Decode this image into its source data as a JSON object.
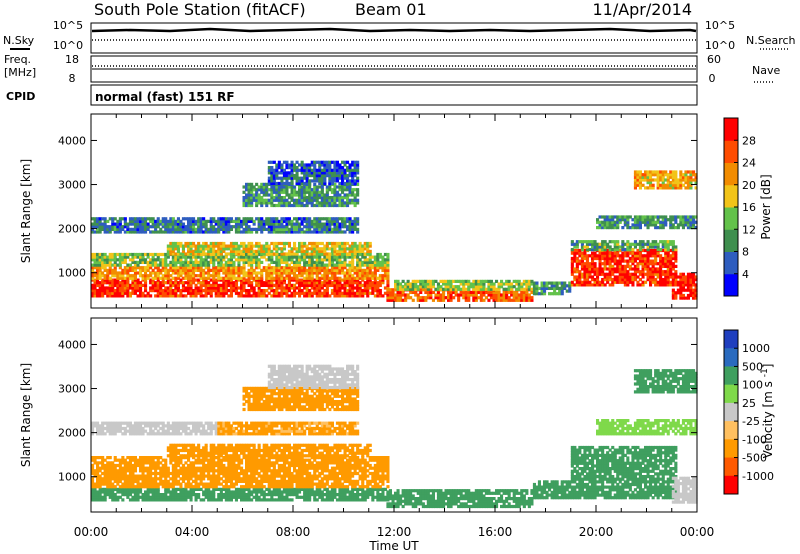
{
  "header": {
    "station_title": "South Pole Station (fitACF)",
    "beam_label": "Beam 01",
    "date_label": "11/Apr/2014"
  },
  "top_panels": {
    "nsky_label": "N.Sky",
    "nsearch_label": "N.Search",
    "freq_label_line1": "Freq.",
    "freq_label_line2": "[MHz]",
    "nave_label": "Nave",
    "cpid_label": "CPID",
    "cpid_value": "normal (fast) 151 RF",
    "noise_ticks": [
      "10^5",
      "10^0"
    ],
    "freq_ticks": [
      "18",
      "8"
    ],
    "nave_ticks": [
      "60",
      "0"
    ]
  },
  "colors": {
    "power_scale": [
      "#0000ff",
      "#2e5dbf",
      "#3f8f4f",
      "#63c24a",
      "#f2c419",
      "#f28c00",
      "#ff4c00",
      "#ff0000"
    ],
    "velocity_scale": [
      "#ff0000",
      "#ff5a00",
      "#ff9a00",
      "#ffc060",
      "#c8c8c8",
      "#7fd94a",
      "#3f9f5f",
      "#2a6bbf",
      "#1f3fbf"
    ],
    "velocity_ground_scatter": "#c8c8c8"
  },
  "chart_data": [
    {
      "type": "heatmap",
      "name": "Power",
      "ylabel": "Slant Range [km]",
      "xlabel": "Time UT",
      "x_ticks": [
        "00:00",
        "04:00",
        "08:00",
        "12:00",
        "16:00",
        "20:00",
        "00:00"
      ],
      "y_ticks": [
        1000,
        2000,
        3000,
        4000
      ],
      "ylim": [
        200,
        4600
      ],
      "colorbar_label": "Power [dB]",
      "colorbar_ticks": [
        4,
        8,
        12,
        16,
        20,
        24,
        28
      ],
      "colorbar_range": [
        0,
        32
      ],
      "bands": [
        {
          "t0": 0.0,
          "t1": 11.7,
          "r0": 450,
          "r1": 850,
          "value": 28
        },
        {
          "t0": 0.0,
          "t1": 11.7,
          "r0": 850,
          "r1": 1150,
          "value": 22
        },
        {
          "t0": 0.0,
          "t1": 11.7,
          "r0": 1150,
          "r1": 1400,
          "value": 14
        },
        {
          "t0": 3.0,
          "t1": 11.0,
          "r0": 1400,
          "r1": 1650,
          "value": 18
        },
        {
          "t0": 0.0,
          "t1": 10.5,
          "r0": 1900,
          "r1": 2250,
          "value": 8
        },
        {
          "t0": 6.0,
          "t1": 10.5,
          "r0": 2500,
          "r1": 3000,
          "value": 10
        },
        {
          "t0": 7.0,
          "t1": 10.5,
          "r0": 3000,
          "r1": 3500,
          "value": 6
        },
        {
          "t0": 11.7,
          "t1": 17.5,
          "r0": 350,
          "r1": 600,
          "value": 25
        },
        {
          "t0": 12.0,
          "t1": 17.5,
          "r0": 600,
          "r1": 800,
          "value": 15
        },
        {
          "t0": 17.5,
          "t1": 19.0,
          "r0": 500,
          "r1": 800,
          "value": 10
        },
        {
          "t0": 19.0,
          "t1": 23.2,
          "r0": 700,
          "r1": 1500,
          "value": 28
        },
        {
          "t0": 19.0,
          "t1": 23.2,
          "r0": 1500,
          "r1": 1700,
          "value": 12
        },
        {
          "t0": 20.0,
          "t1": 24.0,
          "r0": 2000,
          "r1": 2300,
          "value": 10
        },
        {
          "t0": 21.5,
          "t1": 24.0,
          "r0": 2900,
          "r1": 3300,
          "value": 20
        },
        {
          "t0": 23.0,
          "t1": 24.0,
          "r0": 400,
          "r1": 1000,
          "value": 30
        }
      ]
    },
    {
      "type": "heatmap",
      "name": "Velocity",
      "ylabel": "Slant Range [km]",
      "xlabel": "Time UT",
      "x_ticks": [
        "00:00",
        "04:00",
        "08:00",
        "12:00",
        "16:00",
        "20:00",
        "00:00"
      ],
      "y_ticks": [
        1000,
        2000,
        3000,
        4000
      ],
      "ylim": [
        200,
        4600
      ],
      "colorbar_label": "Velocity [m s^-1]",
      "colorbar_ticks": [
        "1000",
        "500",
        "100",
        "25",
        "-25",
        "-100",
        "-500",
        "-1000"
      ],
      "bands": [
        {
          "t0": 0.0,
          "t1": 11.7,
          "r0": 450,
          "r1": 750,
          "value": 250
        },
        {
          "t0": 0.0,
          "t1": 11.7,
          "r0": 750,
          "r1": 1450,
          "value": -200
        },
        {
          "t0": 3.0,
          "t1": 11.0,
          "r0": 1450,
          "r1": 1700,
          "value": -300
        },
        {
          "t0": 0.0,
          "t1": 5.0,
          "r0": 1950,
          "r1": 2200,
          "value": 0
        },
        {
          "t0": 5.0,
          "t1": 10.5,
          "r0": 1950,
          "r1": 2200,
          "value": -150
        },
        {
          "t0": 6.0,
          "t1": 10.5,
          "r0": 2500,
          "r1": 3000,
          "value": -250
        },
        {
          "t0": 7.0,
          "t1": 10.5,
          "r0": 3000,
          "r1": 3500,
          "value": 0
        },
        {
          "t0": 11.7,
          "t1": 17.5,
          "r0": 300,
          "r1": 700,
          "value": 250
        },
        {
          "t0": 17.5,
          "t1": 19.0,
          "r0": 500,
          "r1": 900,
          "value": 300
        },
        {
          "t0": 19.0,
          "t1": 23.2,
          "r0": 500,
          "r1": 1650,
          "value": 300
        },
        {
          "t0": 20.0,
          "t1": 24.0,
          "r0": 1950,
          "r1": 2300,
          "value": 60
        },
        {
          "t0": 21.5,
          "t1": 24.0,
          "r0": 2900,
          "r1": 3400,
          "value": 250
        },
        {
          "t0": 23.0,
          "t1": 24.0,
          "r0": 400,
          "r1": 1000,
          "value": 0
        }
      ]
    }
  ]
}
